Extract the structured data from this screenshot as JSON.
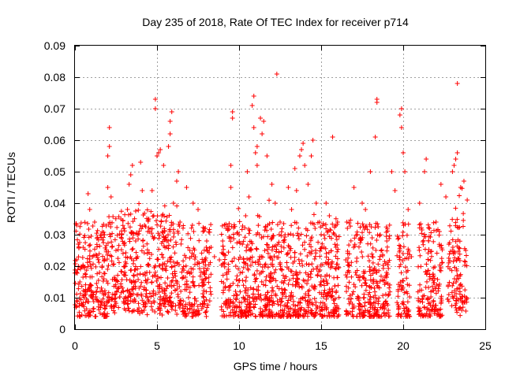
{
  "chart_data": {
    "type": "scatter",
    "title": "Day 235 of 2018, Rate Of TEC Index for receiver p714",
    "xlabel": "GPS time / hours",
    "ylabel": "ROTI / TECUs",
    "xlim": [
      0,
      25
    ],
    "ylim": [
      0,
      0.09
    ],
    "xticks": [
      0,
      5,
      10,
      15,
      20,
      25
    ],
    "xtick_labels": [
      "0",
      "5",
      "10",
      "15",
      "20",
      "25"
    ],
    "yticks": [
      0,
      0.01,
      0.02,
      0.03,
      0.04,
      0.05,
      0.06,
      0.07,
      0.08,
      0.09
    ],
    "ytick_labels": [
      "0",
      "0.01",
      "0.02",
      "0.03",
      "0.04",
      "0.05",
      "0.06",
      "0.07",
      "0.08",
      "0.09"
    ],
    "grid": true,
    "marker": "+",
    "marker_color": "#ff0000",
    "series": [
      {
        "name": "ROTI",
        "points": [
          [
            0.1,
            0.033
          ],
          [
            0.2,
            0.027
          ],
          [
            0.3,
            0.015
          ],
          [
            0.4,
            0.008
          ],
          [
            0.5,
            0.02
          ],
          [
            0.8,
            0.043
          ],
          [
            0.9,
            0.038
          ],
          [
            1.0,
            0.012
          ],
          [
            1.2,
            0.034
          ],
          [
            1.5,
            0.018
          ],
          [
            1.8,
            0.03
          ],
          [
            2.0,
            0.055
          ],
          [
            2.1,
            0.058
          ],
          [
            2.1,
            0.064
          ],
          [
            2.0,
            0.045
          ],
          [
            2.2,
            0.042
          ],
          [
            2.5,
            0.025
          ],
          [
            2.8,
            0.035
          ],
          [
            3.0,
            0.032
          ],
          [
            3.2,
            0.038
          ],
          [
            3.3,
            0.046
          ],
          [
            3.4,
            0.049
          ],
          [
            3.5,
            0.052
          ],
          [
            3.7,
            0.028
          ],
          [
            3.8,
            0.03
          ],
          [
            4.0,
            0.053
          ],
          [
            4.1,
            0.044
          ],
          [
            4.5,
            0.035
          ],
          [
            4.7,
            0.044
          ],
          [
            4.8,
            0.036
          ],
          [
            4.9,
            0.07
          ],
          [
            4.9,
            0.073
          ],
          [
            5.0,
            0.055
          ],
          [
            5.1,
            0.056
          ],
          [
            5.2,
            0.057
          ],
          [
            5.3,
            0.036
          ],
          [
            5.4,
            0.052
          ],
          [
            5.6,
            0.028
          ],
          [
            5.7,
            0.058
          ],
          [
            5.8,
            0.062
          ],
          [
            5.8,
            0.066
          ],
          [
            5.9,
            0.069
          ],
          [
            6.0,
            0.04
          ],
          [
            6.2,
            0.047
          ],
          [
            6.3,
            0.05
          ],
          [
            6.4,
            0.034
          ],
          [
            6.8,
            0.045
          ],
          [
            7.0,
            0.025
          ],
          [
            7.2,
            0.04
          ],
          [
            7.5,
            0.038
          ],
          [
            7.8,
            0.031
          ],
          [
            8.0,
            0.026
          ],
          [
            8.5,
            0.023
          ],
          [
            8.8,
            0.022
          ],
          [
            9.0,
            0.028
          ],
          [
            9.2,
            0.032
          ],
          [
            9.5,
            0.045
          ],
          [
            9.5,
            0.052
          ],
          [
            9.6,
            0.069
          ],
          [
            9.6,
            0.067
          ],
          [
            9.8,
            0.02
          ],
          [
            10.0,
            0.03
          ],
          [
            10.4,
            0.036
          ],
          [
            10.5,
            0.05
          ],
          [
            10.6,
            0.042
          ],
          [
            10.8,
            0.071
          ],
          [
            10.9,
            0.074
          ],
          [
            10.9,
            0.064
          ],
          [
            11.0,
            0.056
          ],
          [
            11.1,
            0.058
          ],
          [
            11.1,
            0.052
          ],
          [
            11.3,
            0.067
          ],
          [
            11.4,
            0.062
          ],
          [
            11.5,
            0.066
          ],
          [
            11.7,
            0.055
          ],
          [
            12.0,
            0.046
          ],
          [
            12.2,
            0.04
          ],
          [
            12.3,
            0.081
          ],
          [
            12.5,
            0.034
          ],
          [
            12.8,
            0.03
          ],
          [
            13.0,
            0.045
          ],
          [
            13.2,
            0.038
          ],
          [
            13.4,
            0.051
          ],
          [
            13.5,
            0.044
          ],
          [
            13.7,
            0.055
          ],
          [
            13.8,
            0.057
          ],
          [
            13.9,
            0.059
          ],
          [
            14.0,
            0.052
          ],
          [
            14.2,
            0.046
          ],
          [
            14.4,
            0.055
          ],
          [
            14.5,
            0.06
          ],
          [
            14.7,
            0.04
          ],
          [
            14.9,
            0.034
          ],
          [
            15.0,
            0.03
          ],
          [
            15.3,
            0.04
          ],
          [
            15.5,
            0.036
          ],
          [
            15.7,
            0.061
          ],
          [
            15.9,
            0.026
          ],
          [
            16.0,
            0.034
          ],
          [
            16.5,
            0.022
          ],
          [
            17.0,
            0.045
          ],
          [
            17.2,
            0.03
          ],
          [
            17.5,
            0.04
          ],
          [
            17.7,
            0.038
          ],
          [
            18.0,
            0.05
          ],
          [
            18.3,
            0.061
          ],
          [
            18.4,
            0.072
          ],
          [
            18.4,
            0.073
          ],
          [
            18.6,
            0.03
          ],
          [
            19.0,
            0.028
          ],
          [
            19.3,
            0.05
          ],
          [
            19.5,
            0.044
          ],
          [
            19.8,
            0.068
          ],
          [
            19.9,
            0.07
          ],
          [
            19.9,
            0.064
          ],
          [
            20.0,
            0.056
          ],
          [
            20.1,
            0.05
          ],
          [
            20.3,
            0.038
          ],
          [
            20.5,
            0.023
          ],
          [
            21.0,
            0.04
          ],
          [
            21.3,
            0.05
          ],
          [
            21.4,
            0.054
          ],
          [
            21.6,
            0.032
          ],
          [
            22.0,
            0.034
          ],
          [
            22.3,
            0.046
          ],
          [
            22.6,
            0.042
          ],
          [
            23.0,
            0.05
          ],
          [
            23.1,
            0.052
          ],
          [
            23.2,
            0.054
          ],
          [
            23.3,
            0.056
          ],
          [
            23.3,
            0.078
          ],
          [
            23.5,
            0.045
          ],
          [
            23.7,
            0.047
          ],
          [
            23.9,
            0.041
          ]
        ]
      }
    ]
  }
}
